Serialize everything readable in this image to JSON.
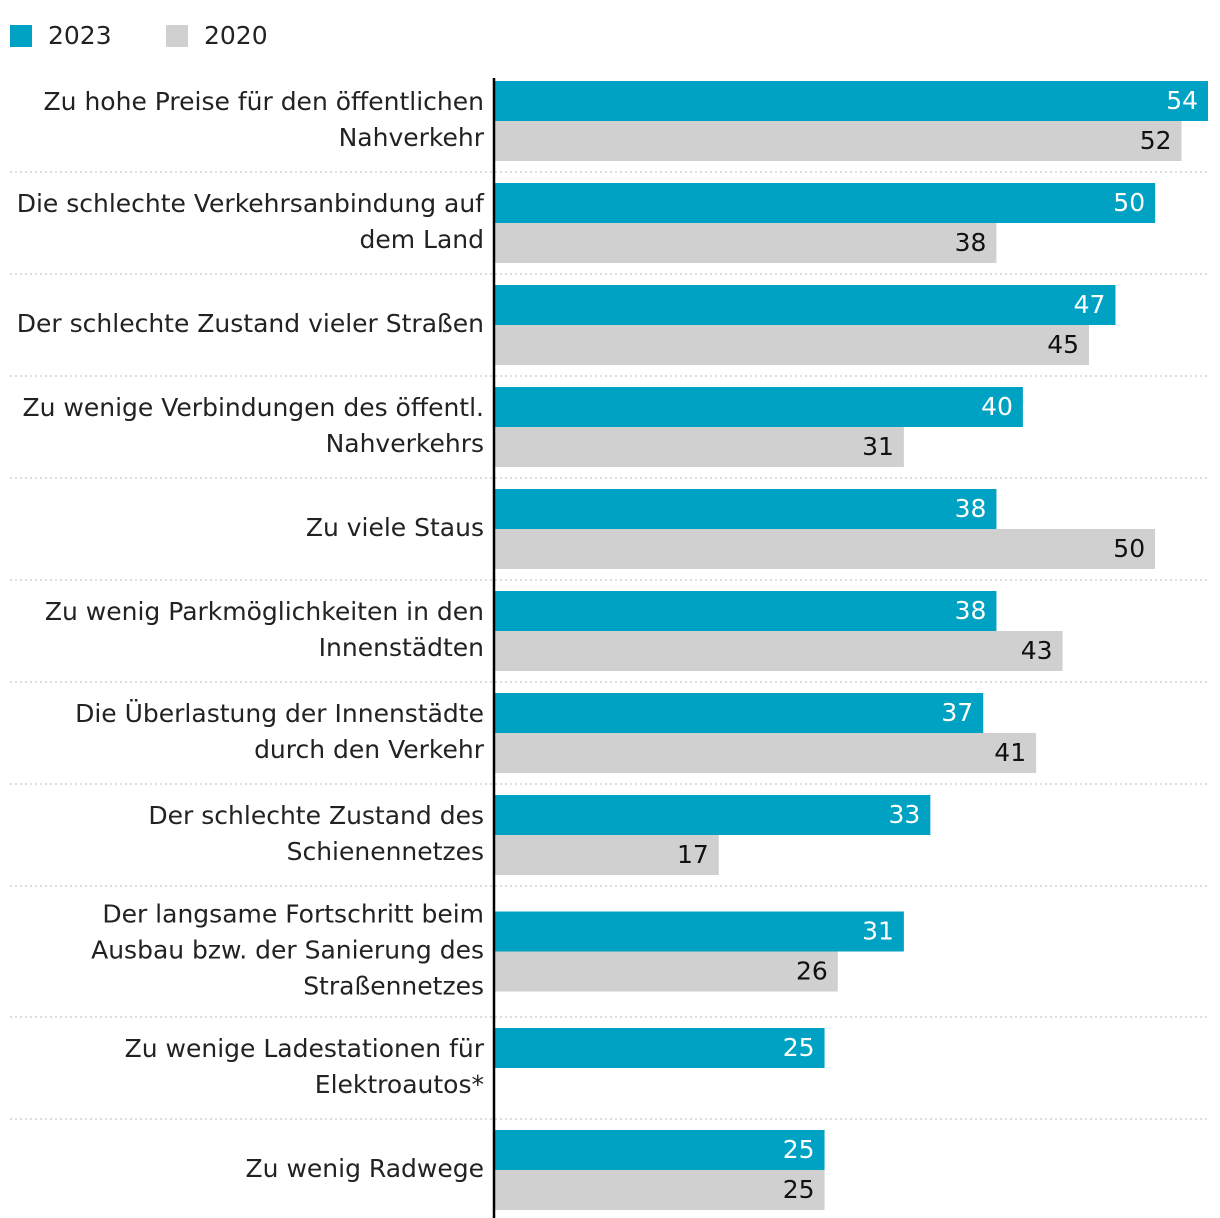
{
  "chart_data": {
    "type": "bar",
    "orientation": "horizontal",
    "categories": [
      "Zu hohe Preise für den öffentlichen\nNahverkehr",
      "Die schlechte Verkehrsanbindung auf\ndem Land",
      "Der schlechte Zustand vieler Straßen",
      "Zu wenige Verbindungen des öffentl.\nNahverkehrs",
      "Zu viele Staus",
      "Zu wenig Parkmöglichkeiten in den\nInnenstädten",
      "Die Überlastung der Innenstädte\ndurch den Verkehr",
      "Der schlechte Zustand des\nSchienennetzes",
      "Der langsame Fortschritt beim\nAusbau bzw. der Sanierung des\nStraßennetzes",
      "Zu wenige Ladestationen für\nElektroautos*",
      "Zu wenig Radwege"
    ],
    "series": [
      {
        "name": "2023",
        "color": "#00a2c3",
        "values": [
          54,
          50,
          47,
          40,
          38,
          38,
          37,
          33,
          31,
          25,
          25
        ]
      },
      {
        "name": "2020",
        "color": "#d0d0d0",
        "values": [
          52,
          38,
          45,
          31,
          50,
          43,
          41,
          17,
          26,
          null,
          25
        ]
      }
    ],
    "xlim": [
      0,
      54
    ],
    "legend": "top-left"
  }
}
